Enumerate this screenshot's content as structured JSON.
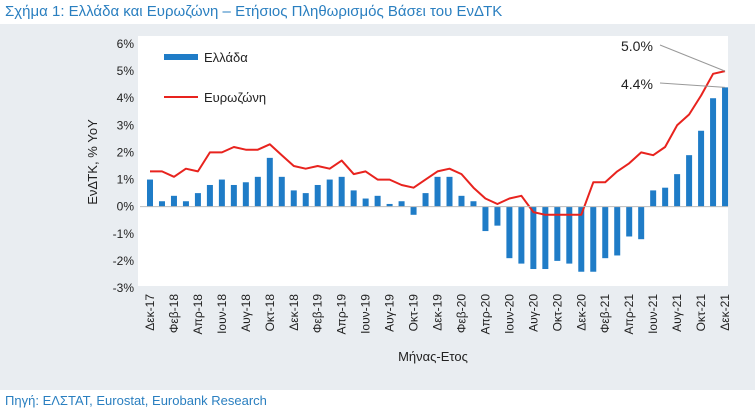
{
  "title": "Σχήμα 1: Ελλάδα και Ευρωζώνη – Ετήσιος Πληθωρισμός Βάσει του ΕνΔΤΚ",
  "source": "Πηγή: ΕΛΣΤΑΤ, Eurostat, Eurobank Research",
  "colors": {
    "greece": "#1f7cc7",
    "eurozone": "#e8231e",
    "title": "#2a7fc0",
    "panel": "#e9edf1",
    "plot": "#ffffff"
  },
  "chart_data": {
    "type": "bar",
    "title": "Σχήμα 1: Ελλάδα και Ευρωζώνη – Ετήσιος Πληθωρισμός Βάσει του ΕνΔΤΚ",
    "xlabel": "Μήνας-Ετος",
    "ylabel": "ΕνΔΤΚ, % YoY",
    "ylim": [
      -3,
      6
    ],
    "yticks": [
      "6%",
      "5%",
      "4%",
      "3%",
      "2%",
      "1%",
      "0%",
      "-1%",
      "-2%",
      "-3%"
    ],
    "xtick_labels": [
      "Δεκ-17",
      "Φεβ-18",
      "Απρ-18",
      "Ιουν-18",
      "Αυγ-18",
      "Οκτ-18",
      "Δεκ-18",
      "Φεβ-19",
      "Απρ-19",
      "Ιουν-19",
      "Αυγ-19",
      "Οκτ-19",
      "Δεκ-19",
      "Φεβ-20",
      "Απρ-20",
      "Ιουν-20",
      "Αυγ-20",
      "Οκτ-20",
      "Δεκ-20",
      "Φεβ-21",
      "Απρ-21",
      "Ιουν-21",
      "Αυγ-21",
      "Οκτ-21",
      "Δεκ-21"
    ],
    "categories": [
      "Δεκ-17",
      "Ιαν-18",
      "Φεβ-18",
      "Μαρ-18",
      "Απρ-18",
      "Μαϊ-18",
      "Ιουν-18",
      "Ιουλ-18",
      "Αυγ-18",
      "Σεπ-18",
      "Οκτ-18",
      "Νοε-18",
      "Δεκ-18",
      "Ιαν-19",
      "Φεβ-19",
      "Μαρ-19",
      "Απρ-19",
      "Μαϊ-19",
      "Ιουν-19",
      "Ιουλ-19",
      "Αυγ-19",
      "Σεπ-19",
      "Οκτ-19",
      "Νοε-19",
      "Δεκ-19",
      "Ιαν-20",
      "Φεβ-20",
      "Μαρ-20",
      "Απρ-20",
      "Μαϊ-20",
      "Ιουν-20",
      "Ιουλ-20",
      "Αυγ-20",
      "Σεπ-20",
      "Οκτ-20",
      "Νοε-20",
      "Δεκ-20",
      "Ιαν-21",
      "Φεβ-21",
      "Μαρ-21",
      "Απρ-21",
      "Μαϊ-21",
      "Ιουν-21",
      "Ιουλ-21",
      "Αυγ-21",
      "Σεπ-21",
      "Οκτ-21",
      "Νοε-21",
      "Δεκ-21"
    ],
    "series": [
      {
        "name": "Ελλάδα",
        "type": "bar",
        "values": [
          1.0,
          0.2,
          0.4,
          0.2,
          0.5,
          0.8,
          1.0,
          0.8,
          0.9,
          1.1,
          1.8,
          1.1,
          0.6,
          0.5,
          0.8,
          1.0,
          1.1,
          0.6,
          0.3,
          0.4,
          0.1,
          0.2,
          -0.3,
          0.5,
          1.1,
          1.1,
          0.4,
          0.2,
          -0.9,
          -0.7,
          -1.9,
          -2.1,
          -2.3,
          -2.3,
          -2.0,
          -2.1,
          -2.4,
          -2.4,
          -1.9,
          -1.8,
          -1.1,
          -1.2,
          0.6,
          0.7,
          1.2,
          1.9,
          2.8,
          4.0,
          4.4
        ]
      },
      {
        "name": "Ευρωζώνη",
        "type": "line",
        "values": [
          1.3,
          1.3,
          1.1,
          1.4,
          1.3,
          2.0,
          2.0,
          2.2,
          2.1,
          2.1,
          2.3,
          1.9,
          1.5,
          1.4,
          1.5,
          1.4,
          1.7,
          1.2,
          1.3,
          1.0,
          1.0,
          0.8,
          0.7,
          1.0,
          1.3,
          1.4,
          1.2,
          0.7,
          0.3,
          0.1,
          0.3,
          0.4,
          -0.2,
          -0.3,
          -0.3,
          -0.3,
          -0.3,
          0.9,
          0.9,
          1.3,
          1.6,
          2.0,
          1.9,
          2.2,
          3.0,
          3.4,
          4.1,
          4.9,
          5.0
        ]
      }
    ],
    "annotations": [
      "5.0%",
      "4.4%"
    ],
    "legend_position": "top-left",
    "grid": false
  }
}
